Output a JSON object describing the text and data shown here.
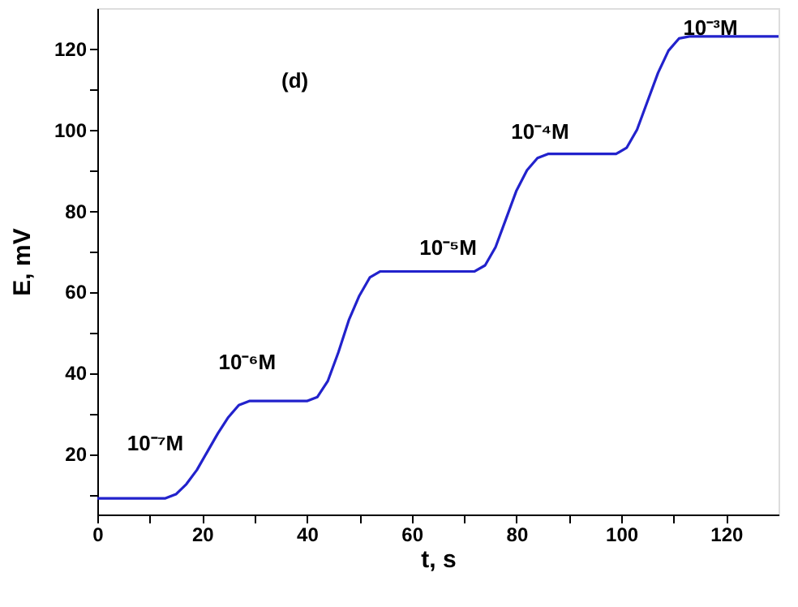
{
  "chart_data": {
    "type": "line",
    "xlabel": "t, s",
    "ylabel": "E, mV",
    "x": [
      0,
      13,
      15,
      17,
      19,
      21,
      23,
      25,
      27,
      29,
      40,
      42,
      44,
      46,
      48,
      50,
      52,
      54,
      72,
      74,
      76,
      78,
      80,
      82,
      84,
      86,
      99,
      101,
      103,
      105,
      107,
      109,
      111,
      113,
      130
    ],
    "series": [
      {
        "color": "#2222cc",
        "values": [
          9,
          9,
          10,
          12.5,
          16,
          20.5,
          25,
          29,
          32,
          33,
          33,
          34,
          38,
          45,
          53,
          59,
          63.5,
          65,
          65,
          66.5,
          71,
          78,
          85,
          90,
          93,
          94,
          94,
          95.5,
          100,
          107,
          114,
          119.5,
          122.5,
          123,
          123
        ]
      }
    ],
    "xlim": [
      0,
      130
    ],
    "ylim": [
      5,
      130
    ],
    "xticks": [
      0,
      {
        "value": 10,
        "label": null
      },
      20,
      {
        "value": 30,
        "label": null
      },
      40,
      {
        "value": 50,
        "label": null
      },
      60,
      {
        "value": 70,
        "label": null
      },
      80,
      {
        "value": 90,
        "label": null
      },
      100,
      {
        "value": 110,
        "label": null
      },
      120
    ],
    "yticks": [
      {
        "value": 10,
        "label": null
      },
      20,
      {
        "value": 30,
        "label": null
      },
      40,
      {
        "value": 50,
        "label": null
      },
      60,
      {
        "value": 70,
        "label": null
      },
      80,
      {
        "value": 90,
        "label": null
      },
      100,
      {
        "value": 110,
        "label": null
      },
      120
    ],
    "grid": false,
    "marker": "none",
    "line_style": "solid",
    "annotations": [
      "(d)",
      "10⁻⁷M",
      "10⁻⁶M",
      "10⁻⁵M",
      "10⁻⁴M",
      "10⁻³M"
    ]
  }
}
